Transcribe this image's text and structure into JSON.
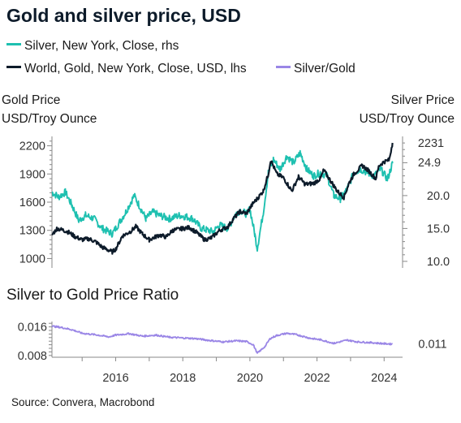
{
  "chart_data": [
    {
      "type": "line",
      "title": "Gold and silver price, USD",
      "legend": [
        {
          "label": "Silver, New York, Close, rhs",
          "color": "#1ec0b0"
        },
        {
          "label": "World, Gold, New York, Close, USD, lhs",
          "color": "#0d1b2a"
        },
        {
          "label": "Silver/Gold",
          "color": "#9a86e6"
        }
      ],
      "ylabel_left": [
        "Gold Price",
        "USD/Troy Ounce"
      ],
      "ylabel_right": [
        "Silver Price",
        "USD/Troy Ounce"
      ],
      "ylim_left": [
        900,
        2300
      ],
      "ylim_right": [
        9.0,
        29.0
      ],
      "yticks_left": [
        1000,
        1300,
        1600,
        1900,
        2200
      ],
      "yticks_right": [
        "10.0",
        "15.0",
        "20.0"
      ],
      "xlim": [
        2014.1,
        2024.55
      ],
      "last_value_labels": {
        "gold": "2231",
        "silver": "24.9"
      },
      "series": [
        {
          "name": "World, Gold, New York, Close, USD, lhs",
          "axis": "left",
          "color": "#0d1b2a",
          "x": [
            2014.1,
            2014.25,
            2014.45,
            2014.6,
            2014.8,
            2015.0,
            2015.2,
            2015.4,
            2015.6,
            2015.9,
            2016.0,
            2016.2,
            2016.45,
            2016.6,
            2016.8,
            2017.0,
            2017.3,
            2017.5,
            2017.7,
            2018.0,
            2018.2,
            2018.4,
            2018.65,
            2018.85,
            2019.1,
            2019.35,
            2019.5,
            2019.7,
            2019.9,
            2020.1,
            2020.25,
            2020.4,
            2020.55,
            2020.62,
            2020.8,
            2021.0,
            2021.25,
            2021.45,
            2021.65,
            2021.9,
            2022.1,
            2022.2,
            2022.4,
            2022.6,
            2022.8,
            2022.95,
            2023.1,
            2023.35,
            2023.55,
            2023.75,
            2023.85,
            2024.0,
            2024.15,
            2024.25
          ],
          "y": [
            1250,
            1320,
            1300,
            1280,
            1230,
            1200,
            1210,
            1180,
            1120,
            1070,
            1100,
            1240,
            1290,
            1340,
            1260,
            1200,
            1250,
            1230,
            1300,
            1320,
            1330,
            1280,
            1200,
            1220,
            1300,
            1340,
            1420,
            1500,
            1480,
            1590,
            1650,
            1720,
            1900,
            2050,
            1900,
            1860,
            1720,
            1870,
            1790,
            1800,
            1850,
            1940,
            1830,
            1720,
            1650,
            1800,
            1900,
            1990,
            1930,
            1850,
            1990,
            2030,
            2050,
            2231
          ]
        },
        {
          "name": "Silver, New York, Close, rhs",
          "axis": "right",
          "color": "#1ec0b0",
          "x": [
            2014.1,
            2014.3,
            2014.5,
            2014.7,
            2014.9,
            2015.1,
            2015.35,
            2015.6,
            2015.9,
            2016.0,
            2016.3,
            2016.55,
            2016.7,
            2016.9,
            2017.1,
            2017.3,
            2017.6,
            2017.9,
            2018.1,
            2018.3,
            2018.55,
            2018.7,
            2018.9,
            2019.1,
            2019.35,
            2019.55,
            2019.7,
            2019.9,
            2020.0,
            2020.15,
            2020.22,
            2020.4,
            2020.55,
            2020.7,
            2020.9,
            2021.1,
            2021.3,
            2021.5,
            2021.7,
            2021.9,
            2022.1,
            2022.3,
            2022.5,
            2022.7,
            2022.9,
            2023.1,
            2023.3,
            2023.5,
            2023.7,
            2023.9,
            2024.1,
            2024.25
          ],
          "y": [
            20.5,
            19.8,
            20.5,
            18.5,
            16.2,
            17.0,
            16.5,
            15.0,
            14.2,
            15.0,
            17.5,
            20.0,
            18.5,
            16.5,
            17.5,
            17.0,
            16.5,
            17.0,
            16.8,
            16.5,
            15.0,
            14.8,
            14.5,
            15.5,
            15.0,
            17.0,
            17.8,
            17.2,
            18.0,
            14.0,
            12.0,
            17.5,
            23.5,
            25.5,
            24.0,
            26.0,
            25.0,
            26.5,
            24.0,
            23.0,
            23.5,
            23.0,
            20.0,
            19.5,
            21.0,
            23.5,
            24.0,
            23.5,
            23.0,
            24.0,
            22.5,
            24.9
          ]
        }
      ]
    },
    {
      "type": "line",
      "title": "Silver to Gold Price Ratio",
      "ylim": [
        0.0075,
        0.0175
      ],
      "yticks": [
        "0.016",
        "0.008"
      ],
      "xlim": [
        2014.1,
        2024.55
      ],
      "xticks": [
        "2016",
        "2018",
        "2020",
        "2022",
        "2024"
      ],
      "last_value_label": "0.011",
      "series": [
        {
          "name": "Silver/Gold",
          "color": "#9a86e6",
          "x": [
            2014.1,
            2014.4,
            2014.7,
            2015.0,
            2015.4,
            2015.8,
            2016.0,
            2016.4,
            2016.8,
            2017.2,
            2017.6,
            2018.0,
            2018.4,
            2018.8,
            2019.2,
            2019.6,
            2019.9,
            2020.1,
            2020.22,
            2020.45,
            2020.6,
            2020.8,
            2021.1,
            2021.4,
            2021.8,
            2022.1,
            2022.5,
            2022.9,
            2023.2,
            2023.6,
            2024.0,
            2024.25
          ],
          "y": [
            0.0162,
            0.0158,
            0.0152,
            0.0142,
            0.0138,
            0.0132,
            0.0137,
            0.0141,
            0.0134,
            0.0137,
            0.0131,
            0.0129,
            0.0127,
            0.0122,
            0.0118,
            0.0121,
            0.0119,
            0.011,
            0.0086,
            0.0105,
            0.0127,
            0.0136,
            0.0142,
            0.0138,
            0.0128,
            0.0124,
            0.0114,
            0.0123,
            0.0118,
            0.0116,
            0.0113,
            0.0112
          ]
        }
      ]
    }
  ],
  "footer": {
    "source": "Source: Convera, Macrobond"
  }
}
